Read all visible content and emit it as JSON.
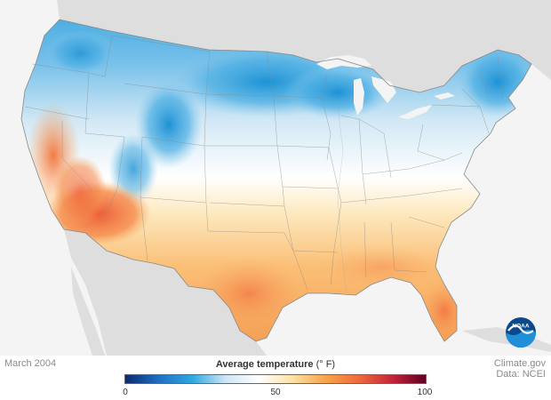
{
  "map": {
    "date_label": "March 2004",
    "legend": {
      "title": "Average temperature",
      "unit": "(° F)",
      "min": 0,
      "mid": 50,
      "max": 100,
      "ticks": [
        "0",
        "50",
        "100"
      ],
      "colors": [
        "#0b2a6e",
        "#1f6fc0",
        "#2ea7e0",
        "#cfe6f4",
        "#ffffff",
        "#fde3a6",
        "#f8a44a",
        "#ef6a3c",
        "#c4243b",
        "#5e0022"
      ]
    },
    "credit_line1": "Climate.gov",
    "credit_line2": "Data: NCEI",
    "logo_text": "NOAA",
    "palette": {
      "background_land": "#dedede",
      "ocean": "#f4f4f4",
      "cold": "#2ea7e0",
      "cool": "#cfe6f4",
      "neutral": "#ffffff",
      "warm": "#fbc37e",
      "hot": "#ef6a3c"
    }
  }
}
